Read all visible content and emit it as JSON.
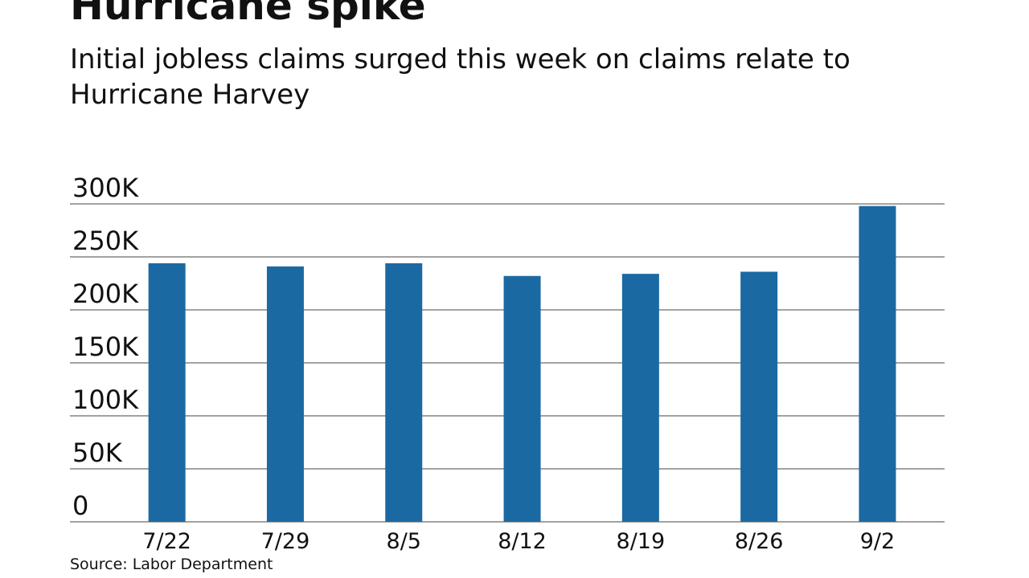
{
  "chart_data": {
    "type": "bar",
    "title": "Hurricane spike",
    "subtitle": "Initial jobless claims surged this week on claims relate to Hurricane Harvey",
    "source": "Source: Labor Department",
    "categories": [
      "7/22",
      "7/29",
      "8/5",
      "8/12",
      "8/19",
      "8/26",
      "9/2"
    ],
    "values": [
      244000,
      241000,
      244000,
      232000,
      234000,
      236000,
      298000
    ],
    "color": "#1b69a2",
    "ylim": [
      0,
      300000
    ],
    "yticks": [
      0,
      {
        "value": 50000,
        "label": "50K"
      },
      {
        "value": 100000,
        "label": "100K"
      },
      {
        "value": 150000,
        "label": "150K"
      },
      {
        "value": 200000,
        "label": "200K"
      },
      {
        "value": 250000,
        "label": "250K"
      },
      {
        "value": 300000,
        "label": "300K"
      }
    ],
    "grid": true
  }
}
